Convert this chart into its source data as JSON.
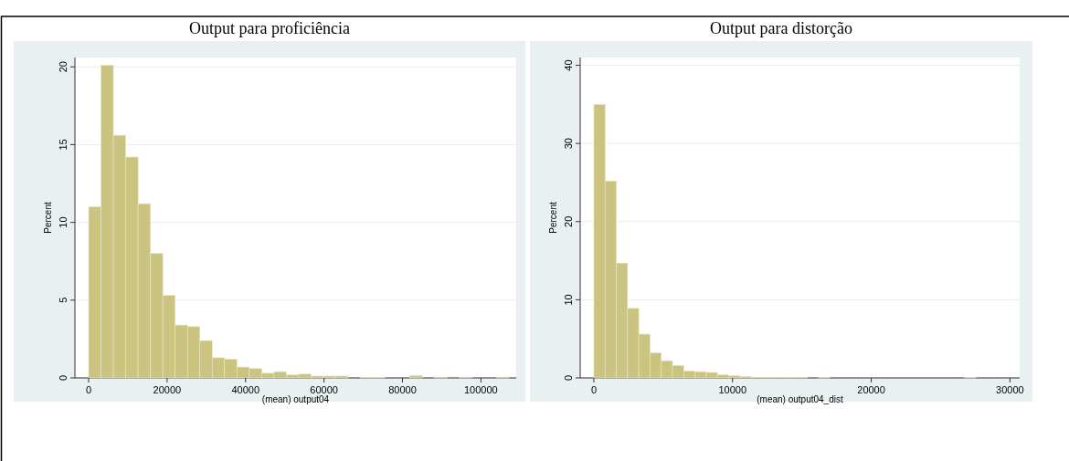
{
  "chart_data": [
    {
      "type": "histogram",
      "title": "Output para proficiência",
      "xlabel": "(mean) output04",
      "ylabel": "Percent",
      "color": "#cbc481",
      "grid": "y",
      "bins": [
        0,
        3150,
        6300,
        9450,
        12600,
        15750,
        18900,
        22050,
        25200,
        28350,
        31500,
        34650,
        37800,
        40950,
        44100,
        47250,
        50400,
        53550,
        56700,
        59850,
        63000,
        66150,
        69300,
        72450,
        75600,
        78750,
        81900,
        85050,
        88200,
        91350,
        94500,
        97650,
        100800,
        103950,
        107100
      ],
      "values": [
        11.0,
        20.1,
        15.6,
        14.2,
        11.2,
        8.0,
        5.3,
        3.4,
        3.3,
        2.4,
        1.3,
        1.2,
        0.7,
        0.6,
        0.3,
        0.4,
        0.2,
        0.25,
        0.12,
        0.12,
        0.12,
        0,
        0.05,
        0.05,
        0,
        0,
        0.15,
        0,
        0.06,
        0,
        0.06,
        0,
        0,
        0.06
      ],
      "xlim": [
        -3500,
        109000
      ],
      "ylim": [
        0,
        20.6
      ],
      "xticks": [
        0,
        20000,
        40000,
        60000,
        80000,
        100000
      ],
      "yticks": [
        0,
        5,
        10,
        15,
        20
      ]
    },
    {
      "type": "histogram",
      "title": "Output para distorção",
      "xlabel": "(mean) output04_dist",
      "ylabel": "Percent",
      "color": "#cbc481",
      "grid": "y",
      "bins": [
        0,
        810,
        1620,
        2430,
        3240,
        4050,
        4860,
        5670,
        6480,
        7290,
        8100,
        8910,
        9720,
        10530,
        11340,
        12150,
        12960,
        13770,
        14580,
        15390,
        16200,
        17010,
        17820,
        18630,
        19440,
        20250,
        21060,
        21870,
        22680,
        23490,
        24300,
        25110,
        25920,
        26730,
        27540
      ],
      "values": [
        35.0,
        25.2,
        14.7,
        8.9,
        5.6,
        3.2,
        2.2,
        1.6,
        0.9,
        0.8,
        0.7,
        0.4,
        0.3,
        0.2,
        0.1,
        0.1,
        0.1,
        0.1,
        0.1,
        0,
        0.1,
        0,
        0,
        0,
        0,
        0,
        0,
        0,
        0,
        0,
        0,
        0,
        0,
        0.1
      ],
      "xlim": [
        -985,
        30700
      ],
      "ylim": [
        0,
        41
      ],
      "xticks": [
        0,
        10000,
        20000,
        30000
      ],
      "yticks": [
        0,
        10,
        20,
        30,
        40
      ]
    }
  ]
}
